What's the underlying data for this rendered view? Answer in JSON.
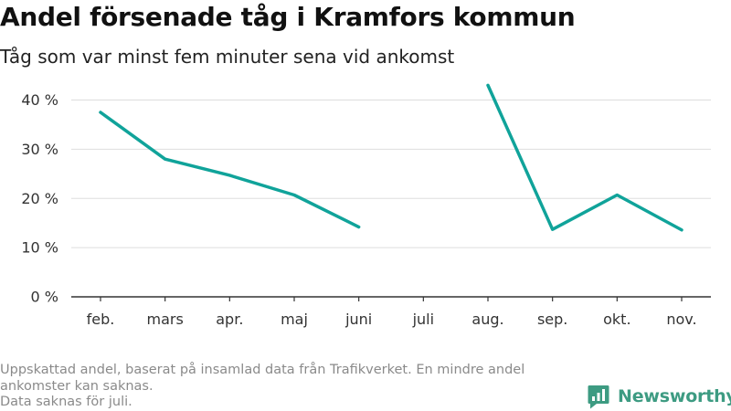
{
  "header": {
    "title": "Andel försenade tåg i Kramfors kommun",
    "subtitle": "Tåg som var minst fem minuter sena vid ankomst"
  },
  "footer": {
    "note_line1": "Uppskattad andel, baserat på insamlad data från Trafikverket. En mindre andel ankomster kan saknas.",
    "note_line2": "Data saknas för juli."
  },
  "brand": {
    "name": "Newsworthy",
    "logo_icon": "newsworthy-logo-icon",
    "color": "#3d9b82"
  },
  "chart_data": {
    "type": "line",
    "categories": [
      "feb.",
      "mars",
      "apr.",
      "maj",
      "juni",
      "juli",
      "aug.",
      "sep.",
      "okt.",
      "nov."
    ],
    "series": [
      {
        "values": [
          37.5,
          28.0,
          24.7,
          20.7,
          14.2,
          null,
          43.0,
          13.7,
          20.7,
          13.6
        ],
        "color": "#10a39a"
      }
    ],
    "yticks": [
      0,
      10,
      20,
      30,
      40
    ],
    "ytick_labels": [
      "0 %",
      "10 %",
      "20 %",
      "30 %",
      "40 %"
    ],
    "ylim": [
      0,
      44
    ],
    "xlabel": "",
    "ylabel": "",
    "grid": true,
    "grid_color": "#dddddd",
    "axis_color": "#333333"
  }
}
